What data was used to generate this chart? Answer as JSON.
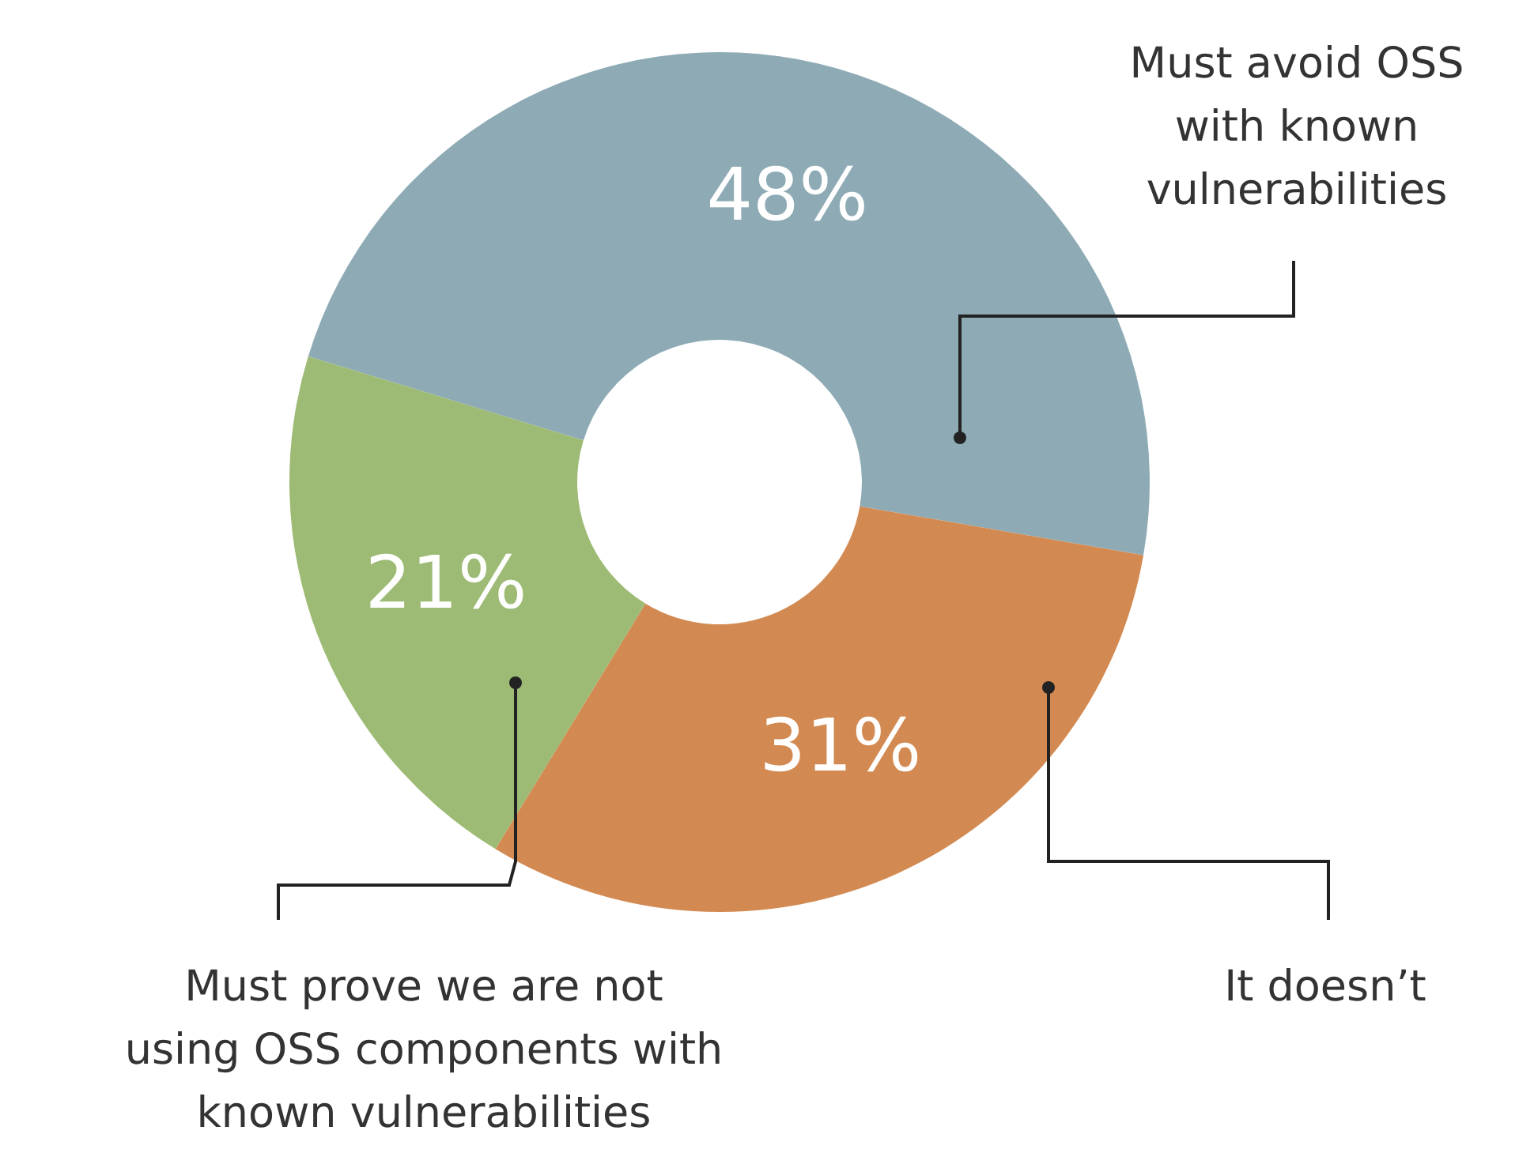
{
  "chart_data": {
    "type": "donut",
    "categories": [
      "Must avoid OSS with known vulnerabilities",
      "It doesn’t",
      "Must prove we are not using OSS components with known vulnerabilities"
    ],
    "values": [
      48,
      31,
      21
    ],
    "colors": [
      "#8eabb5",
      "#d38a52",
      "#9dbb74"
    ],
    "value_labels": [
      "48%",
      "31%",
      "21%"
    ]
  }
}
